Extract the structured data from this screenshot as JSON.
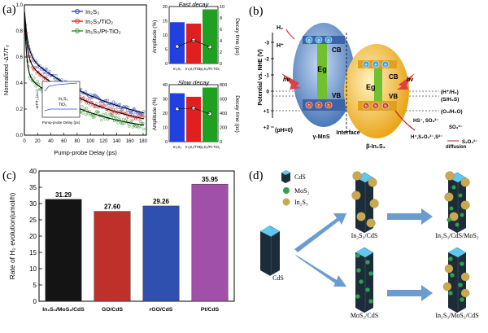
{
  "panel_labels": {
    "a": "(a)",
    "b": "(b)",
    "c": "(c)",
    "d": "(d)"
  },
  "panel_a": {
    "kinetics": {
      "type": "line",
      "xlabel": "Pump-probe Delay (ps)",
      "ylabel": "Normalized -ΔT/T₀",
      "xlim": [
        0,
        185
      ],
      "ylim": [
        0,
        1.0
      ],
      "xticks": [
        "0",
        "20",
        "40",
        "60",
        "80",
        "100",
        "120",
        "140",
        "160",
        "180"
      ],
      "yticks": [
        "0.0",
        "0.2",
        "0.4",
        "0.6",
        "0.8",
        "1.0"
      ],
      "legend_position": "top-right",
      "legend": [
        "In₂S₃",
        "In₂S₃/TiO₂",
        "In₂S₃/Pt-TiO₂"
      ],
      "colors": [
        "#3050d0",
        "#e03030",
        "#30a030"
      ],
      "series_decay": [
        {
          "name": "In₂S₃",
          "a1": 0.35,
          "t1": 5,
          "a2": 0.62,
          "t2": 140
        },
        {
          "name": "In₂S₃/TiO₂",
          "a1": 0.4,
          "t1": 4,
          "a2": 0.57,
          "t2": 120
        },
        {
          "name": "In₂S₃/Pt-TiO₂",
          "a1": 0.5,
          "t1": 3,
          "a2": 0.47,
          "t2": 100
        }
      ],
      "inset": {
        "xlabel": "Pump-probe Delay (ps)",
        "ylabel": "-ΔT/T₀ (a.u.)",
        "yticks": [
          "0.0",
          "0.5"
        ],
        "xticks": [
          "0",
          "0.5"
        ],
        "legend": [
          "In₂S₃",
          "TiO₂"
        ]
      }
    },
    "fast_decay": {
      "type": "bar",
      "title": "Fast decay",
      "categories": [
        "In₂S₃",
        "In₂S₃/TiO₂",
        "In₂S₃/Pt-TiO₂"
      ],
      "amplitude": [
        14.5,
        14.0,
        19.0
      ],
      "decay_time": [
        3.0,
        4.1,
        2.9
      ],
      "ylabel_left": "Amplitude (%)",
      "ylabel_right": "Decay time (ps)",
      "ylim_left": [
        0,
        20
      ],
      "ylim_right": [
        0,
        10
      ],
      "yticks_left": [
        "0",
        "5",
        "10",
        "15",
        "20"
      ],
      "yticks_right": [
        "0",
        "2",
        "4",
        "6",
        "8",
        "10"
      ]
    },
    "slow_decay": {
      "type": "bar",
      "title": "Slow decay",
      "categories": [
        "In₂S₃",
        "In₂S₃/TiO₂",
        "In₂S₃/Pt-TiO₂"
      ],
      "amplitude": [
        34,
        31.5,
        38
      ],
      "decay_time": [
        460,
        470,
        390
      ],
      "ylabel_left": "Amplitude (%)",
      "ylabel_right": "Decay time (ps)",
      "ylim_left": [
        0,
        40
      ],
      "ylim_right": [
        0,
        800
      ],
      "yticks_left": [
        "0",
        "10",
        "20",
        "30",
        "40"
      ],
      "yticks_right": [
        "0",
        "200",
        "400",
        "600",
        "800"
      ]
    },
    "colors": {
      "blue": "#2040e0",
      "red": "#e02020",
      "green": "#20a020"
    }
  },
  "panel_b": {
    "ylabel": "Potential vs. NHE (V)",
    "yticks": [
      "-3",
      "-2",
      "-1",
      "0",
      "+1",
      "+2"
    ],
    "ph_label": "(pH=0)",
    "left_label": "γ-MnS",
    "right_label": "β-In₂S₃",
    "interface_label": "Interface",
    "cb": "CB",
    "vb": "VB",
    "eg": "Eg",
    "hv": "hν",
    "h2": "H₂",
    "hplus": "H⁺",
    "electron": "e",
    "hole": "h",
    "levels": [
      "(H⁺/H₂)",
      "(S/H₂S)",
      "(O₂/H₂O)"
    ],
    "hs_label": "HS⁻, SO₃²⁻",
    "so3": "SO₃²⁻",
    "products": "H⁺,S₂O₃²⁻,S²⁻",
    "diffusion": "diffusion",
    "final": "S₂O₃²⁻",
    "colors": {
      "mns": "#6890c8",
      "in2s3": "#f0b028",
      "eg": "#70c030",
      "arrow": "#e04040"
    }
  },
  "panel_c": {
    "chart_data": {
      "type": "bar",
      "categories": [
        "In₂S₃/MoS₂/CdS",
        "GO/CdS",
        "rGO/CdS",
        "Pt/CdS"
      ],
      "values": [
        31.29,
        27.6,
        29.26,
        35.95
      ],
      "value_labels": [
        "31.29",
        "27.60",
        "29.26",
        "35.95"
      ],
      "ylabel": "Rate of H₂ evolution(umol/h)",
      "ylim": [
        0,
        40
      ],
      "yticks": [
        "0",
        "5",
        "10",
        "15",
        "20",
        "25",
        "30",
        "35",
        "40"
      ],
      "colors": [
        "#141414",
        "#c0302a",
        "#3050b0",
        "#a050a8"
      ]
    }
  },
  "panel_d": {
    "legend": [
      {
        "label": "CdS",
        "kind": "cds-icon"
      },
      {
        "label": "MoS₂",
        "kind": "mos2-icon"
      },
      {
        "label": "In₂S₃",
        "kind": "in2s3-icon"
      }
    ],
    "labels": {
      "cds": "CdS",
      "in2s3_cds": "In₂S₃/CdS",
      "mos2_cds": "MoS₂/CdS",
      "top_right": "In₂S₃/CdS/MoS₂",
      "bottom_right": "In₂S₃/MoS₂/CdS"
    },
    "colors": {
      "rod_top": "#60c8f0",
      "rod_body": "#1c2c38",
      "mos2": "#30a050",
      "in2s3": "#c8a850",
      "arrow": "#6a9cd0"
    }
  }
}
